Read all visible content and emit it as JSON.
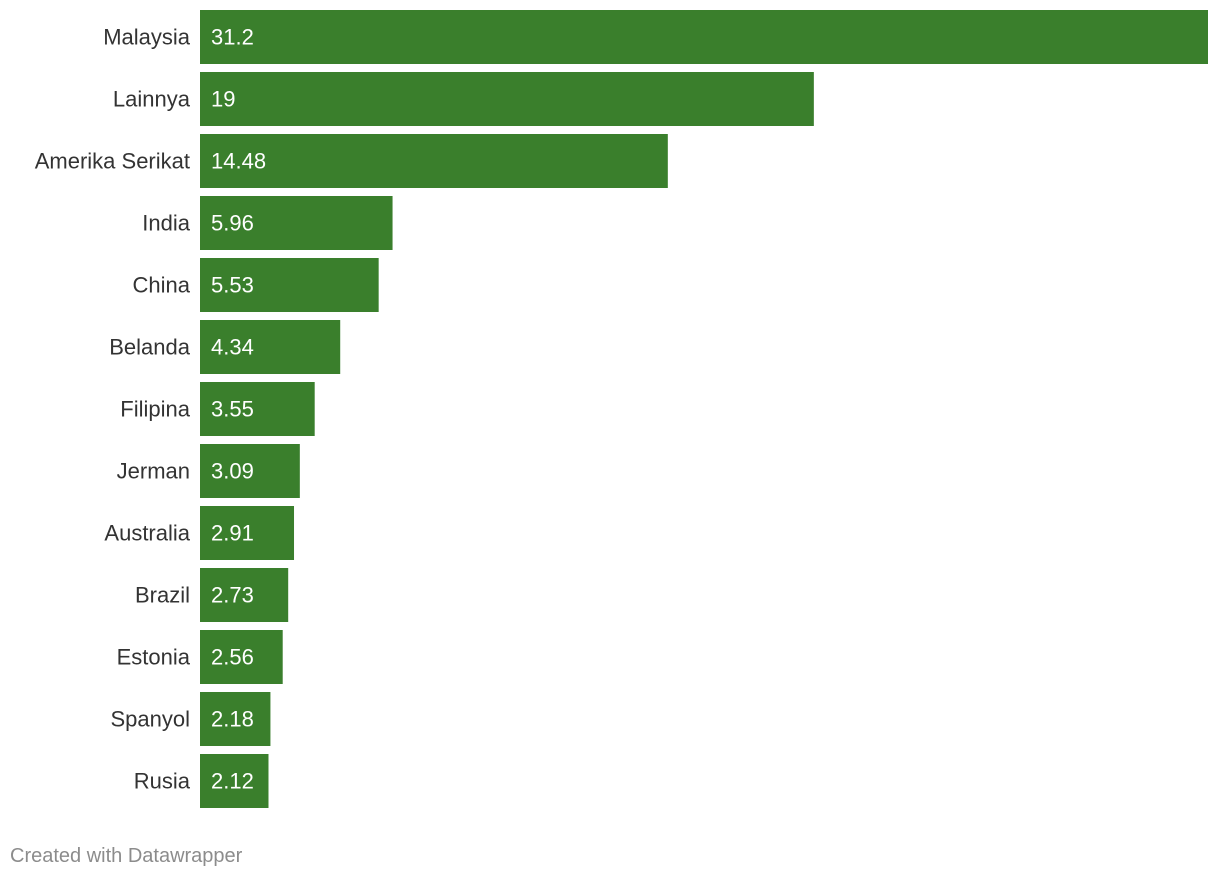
{
  "chart_data": {
    "type": "bar",
    "orientation": "horizontal",
    "categories": [
      "Malaysia",
      "Lainnya",
      "Amerika Serikat",
      "India",
      "China",
      "Belanda",
      "Filipina",
      "Jerman",
      "Australia",
      "Brazil",
      "Estonia",
      "Spanyol",
      "Rusia"
    ],
    "values": [
      31.2,
      19,
      14.48,
      5.96,
      5.53,
      4.34,
      3.55,
      3.09,
      2.91,
      2.73,
      2.56,
      2.18,
      2.12
    ],
    "value_labels": [
      "31.2",
      "19",
      "14.48",
      "5.96",
      "5.53",
      "4.34",
      "3.55",
      "3.09",
      "2.91",
      "2.73",
      "2.56",
      "2.18",
      "2.12"
    ],
    "xlim": [
      0,
      31.2
    ],
    "bar_color": "#3a7f2c",
    "label_color": "#333333",
    "value_label_color": "#ffffff",
    "grid": false,
    "legend": "none"
  },
  "footer": {
    "credit": "Created with Datawrapper",
    "credit_color": "#8c8c8c"
  }
}
